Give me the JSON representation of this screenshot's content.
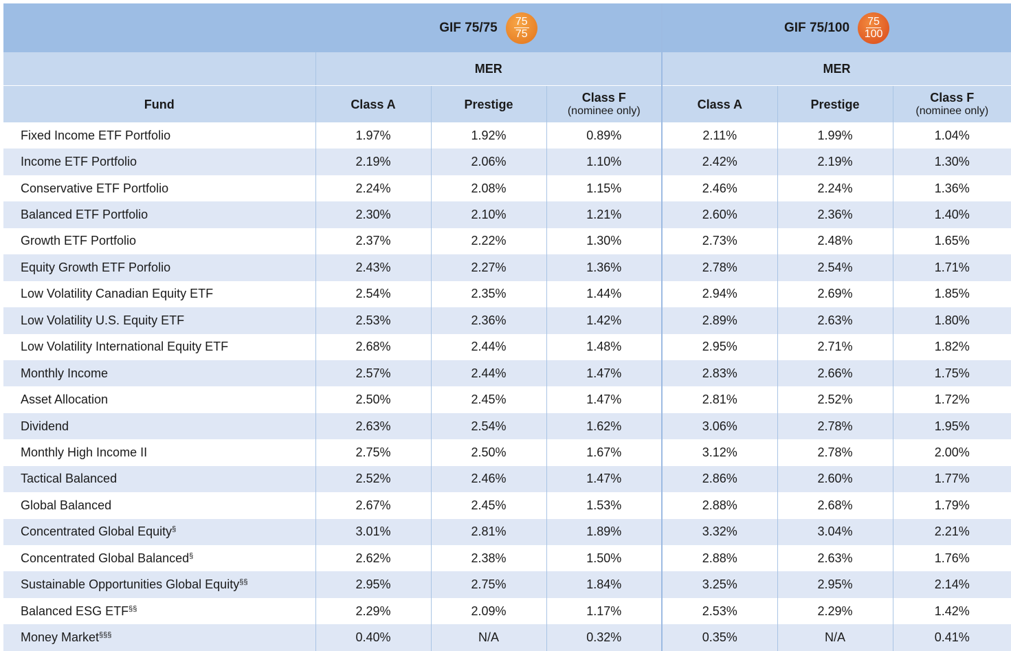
{
  "header": {
    "groups": [
      {
        "title": "GIF 75/75",
        "badge": {
          "top": "75",
          "bottom": "75"
        },
        "subtitle": "MER"
      },
      {
        "title": "GIF 75/100",
        "badge": {
          "top": "75",
          "bottom": "100"
        },
        "subtitle": "MER"
      }
    ],
    "fund_label": "Fund",
    "columns": [
      {
        "name": "Class A"
      },
      {
        "name": "Prestige"
      },
      {
        "name": "Class F",
        "note": "(nominee only)"
      },
      {
        "name": "Class A"
      },
      {
        "name": "Prestige"
      },
      {
        "name": "Class F",
        "note": "(nominee only)"
      }
    ]
  },
  "rows": [
    {
      "fund": "Fixed Income ETF Portfolio",
      "cells": [
        "1.97%",
        "1.92%",
        "0.89%",
        "2.11%",
        "1.99%",
        "1.04%"
      ]
    },
    {
      "fund": "Income ETF Portfolio",
      "cells": [
        "2.19%",
        "2.06%",
        "1.10%",
        "2.42%",
        "2.19%",
        "1.30%"
      ]
    },
    {
      "fund": "Conservative ETF Portfolio",
      "cells": [
        "2.24%",
        "2.08%",
        "1.15%",
        "2.46%",
        "2.24%",
        "1.36%"
      ]
    },
    {
      "fund": "Balanced ETF Portfolio",
      "cells": [
        "2.30%",
        "2.10%",
        "1.21%",
        "2.60%",
        "2.36%",
        "1.40%"
      ]
    },
    {
      "fund": "Growth ETF Portfolio",
      "cells": [
        "2.37%",
        "2.22%",
        "1.30%",
        "2.73%",
        "2.48%",
        "1.65%"
      ]
    },
    {
      "fund": "Equity Growth ETF Porfolio",
      "cells": [
        "2.43%",
        "2.27%",
        "1.36%",
        "2.78%",
        "2.54%",
        "1.71%"
      ]
    },
    {
      "fund": "Low Volatility Canadian Equity ETF",
      "cells": [
        "2.54%",
        "2.35%",
        "1.44%",
        "2.94%",
        "2.69%",
        "1.85%"
      ]
    },
    {
      "fund": "Low Volatility U.S. Equity ETF",
      "cells": [
        "2.53%",
        "2.36%",
        "1.42%",
        "2.89%",
        "2.63%",
        "1.80%"
      ]
    },
    {
      "fund": "Low Volatility International Equity ETF",
      "cells": [
        "2.68%",
        "2.44%",
        "1.48%",
        "2.95%",
        "2.71%",
        "1.82%"
      ]
    },
    {
      "fund": "Monthly Income",
      "cells": [
        "2.57%",
        "2.44%",
        "1.47%",
        "2.83%",
        "2.66%",
        "1.75%"
      ]
    },
    {
      "fund": "Asset Allocation",
      "cells": [
        "2.50%",
        "2.45%",
        "1.47%",
        "2.81%",
        "2.52%",
        "1.72%"
      ]
    },
    {
      "fund": "Dividend",
      "cells": [
        "2.63%",
        "2.54%",
        "1.62%",
        "3.06%",
        "2.78%",
        "1.95%"
      ]
    },
    {
      "fund": "Monthly High Income II",
      "cells": [
        "2.75%",
        "2.50%",
        "1.67%",
        "3.12%",
        "2.78%",
        "2.00%"
      ]
    },
    {
      "fund": "Tactical Balanced",
      "cells": [
        "2.52%",
        "2.46%",
        "1.47%",
        "2.86%",
        "2.60%",
        "1.77%"
      ]
    },
    {
      "fund": "Global Balanced",
      "cells": [
        "2.67%",
        "2.45%",
        "1.53%",
        "2.88%",
        "2.68%",
        "1.79%"
      ]
    },
    {
      "fund": "Concentrated Global Equity",
      "mark": "§",
      "cells": [
        "3.01%",
        "2.81%",
        "1.89%",
        "3.32%",
        "3.04%",
        "2.21%"
      ]
    },
    {
      "fund": "Concentrated Global Balanced",
      "mark": "§",
      "cells": [
        "2.62%",
        "2.38%",
        "1.50%",
        "2.88%",
        "2.63%",
        "1.76%"
      ]
    },
    {
      "fund": "Sustainable Opportunities Global Equity",
      "mark": "§§",
      "cells": [
        "2.95%",
        "2.75%",
        "1.84%",
        "3.25%",
        "2.95%",
        "2.14%"
      ]
    },
    {
      "fund": "Balanced ESG ETF",
      "mark": "§§",
      "cells": [
        "2.29%",
        "2.09%",
        "1.17%",
        "2.53%",
        "2.29%",
        "1.42%"
      ]
    },
    {
      "fund": "Money Market",
      "mark": "§§§",
      "cells": [
        "0.40%",
        "N/A",
        "0.32%",
        "0.35%",
        "N/A",
        "0.41%"
      ]
    }
  ]
}
